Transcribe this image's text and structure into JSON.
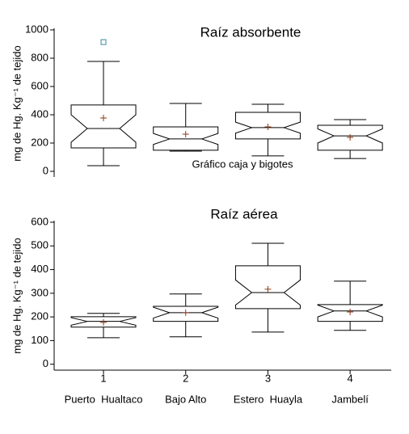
{
  "chart_data": [
    {
      "type": "box",
      "title": "Raíz absorbente",
      "annotation": "Gráfico caja y bigotes",
      "ylabel": "mg de Hg. Kg⁻¹ de tejido",
      "x": [
        1,
        2,
        3,
        4
      ],
      "xlim": [
        0.4,
        4.5
      ],
      "ylim": [
        -40,
        1000
      ],
      "yticks": [
        0,
        200,
        400,
        600,
        800,
        1000
      ],
      "color": "#000000",
      "mean_color": "#8b3a1a",
      "flier_color": "#3a8a9a",
      "boxes": [
        {
          "whislo": 40,
          "q1": 166,
          "notch_low": 206,
          "med": 303,
          "notch_high": 400,
          "q3": 469,
          "whishi": 777,
          "mean": 377,
          "fliers": [
            914
          ]
        },
        {
          "whislo": 143,
          "q1": 149,
          "notch_low": 190,
          "med": 229,
          "notch_high": 268,
          "q3": 314,
          "whishi": 480,
          "mean": 263,
          "fliers": []
        },
        {
          "whislo": 109,
          "q1": 229,
          "notch_low": 270,
          "med": 309,
          "notch_high": 348,
          "q3": 417,
          "whishi": 474,
          "mean": 314,
          "fliers": []
        },
        {
          "whislo": 91,
          "q1": 149,
          "notch_low": 200,
          "med": 251,
          "notch_high": 300,
          "q3": 326,
          "whishi": 366,
          "mean": 240,
          "fliers": []
        }
      ]
    },
    {
      "type": "box",
      "title": "Raíz aérea",
      "ylabel": "mg de Hg. Kg⁻¹ de tejido",
      "x": [
        1,
        2,
        3,
        4
      ],
      "xlim": [
        0.4,
        4.5
      ],
      "xticks": [
        1,
        2,
        3,
        4
      ],
      "categories": [
        "Puerto  Hualtaco",
        "Bajo Alto",
        "Estero  Huayla",
        "Jambelí"
      ],
      "ylim": [
        -25,
        600
      ],
      "yticks": [
        0,
        100,
        200,
        300,
        400,
        500,
        600
      ],
      "color": "#000000",
      "mean_color": "#8b3a1a",
      "flier_color": "#3a8a9a",
      "boxes": [
        {
          "whislo": 112,
          "q1": 157,
          "notch_low": 165,
          "med": 181,
          "notch_high": 197,
          "q3": 201,
          "whishi": 215,
          "mean": 177,
          "fliers": []
        },
        {
          "whislo": 116,
          "q1": 181,
          "notch_low": 195,
          "med": 218,
          "notch_high": 241,
          "q3": 245,
          "whishi": 297,
          "mean": 218,
          "fliers": []
        },
        {
          "whislo": 136,
          "q1": 235,
          "notch_low": 250,
          "med": 303,
          "notch_high": 356,
          "q3": 416,
          "whishi": 511,
          "mean": 317,
          "fliers": []
        },
        {
          "whislo": 143,
          "q1": 181,
          "notch_low": 200,
          "med": 225,
          "notch_high": 250,
          "q3": 252,
          "whishi": 351,
          "mean": 221,
          "fliers": []
        }
      ]
    }
  ]
}
